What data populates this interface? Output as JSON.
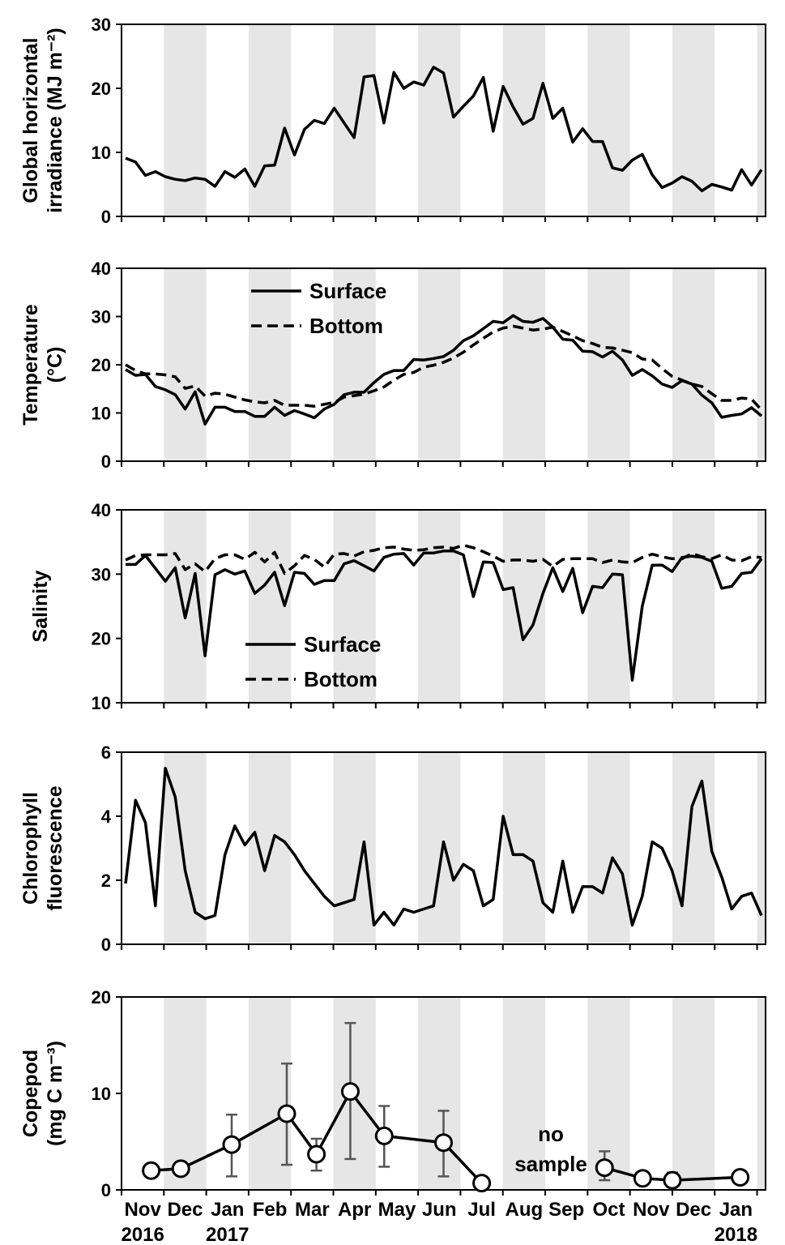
{
  "x_axis": {
    "months": [
      "Nov",
      "Dec",
      "Jan",
      "Feb",
      "Mar",
      "Apr",
      "May",
      "Jun",
      "Jul",
      "Aug",
      "Sep",
      "Oct",
      "Nov",
      "Dec",
      "Jan"
    ],
    "years": [
      {
        "month_index": 0,
        "label": "2016"
      },
      {
        "month_index": 2,
        "label": "2017"
      },
      {
        "month_index": 14,
        "label": "2018"
      }
    ]
  },
  "chart_data": [
    {
      "type": "line",
      "ylabel": [
        "Global horizontal",
        "irradiance (MJ m⁻²)"
      ],
      "ylim": [
        0,
        30
      ],
      "yticks": [
        0,
        10,
        20,
        30
      ],
      "series": [
        {
          "style": "solid",
          "values": [
            9.1,
            8.5,
            6.4,
            7.0,
            6.2,
            5.8,
            5.6,
            6.0,
            5.8,
            4.7,
            7.0,
            6.1,
            7.4,
            4.7,
            7.9,
            8.0,
            13.8,
            9.6,
            13.6,
            15.0,
            14.5,
            16.9,
            14.6,
            12.3,
            21.8,
            22.0,
            14.6,
            22.5,
            20.0,
            21.0,
            20.5,
            23.3,
            22.4,
            15.5,
            17.2,
            18.8,
            21.7,
            13.3,
            20.3,
            17.1,
            14.4,
            15.3,
            20.8,
            15.3,
            16.9,
            11.6,
            13.7,
            11.7,
            11.7,
            7.6,
            7.2,
            8.8,
            9.7,
            6.5,
            4.5,
            5.2,
            6.2,
            5.5,
            4.0,
            5.0,
            4.6,
            4.1,
            7.3,
            4.9,
            7.3
          ]
        }
      ]
    },
    {
      "type": "line",
      "ylabel": [
        "Temperature",
        "(°C)"
      ],
      "ylim": [
        0,
        40
      ],
      "yticks": [
        0,
        10,
        20,
        30,
        40
      ],
      "legend": {
        "placement": "top-left",
        "entries": [
          {
            "name": "Surface",
            "style": "solid"
          },
          {
            "name": "Bottom",
            "style": "dashed"
          }
        ]
      },
      "series": [
        {
          "name": "Surface",
          "style": "solid",
          "values": [
            19.0,
            17.8,
            18.0,
            15.5,
            14.8,
            13.8,
            10.8,
            14.4,
            7.7,
            11.2,
            11.2,
            10.3,
            10.3,
            9.3,
            9.3,
            11.2,
            9.5,
            10.5,
            9.8,
            9.0,
            10.8,
            11.8,
            13.8,
            14.3,
            14.3,
            16.3,
            18.0,
            18.8,
            18.8,
            21.1,
            21.0,
            21.3,
            21.7,
            23.0,
            25.0,
            26.0,
            27.5,
            29.0,
            28.7,
            30.2,
            29.0,
            28.8,
            29.6,
            27.8,
            25.3,
            25.1,
            22.8,
            22.7,
            21.6,
            22.8,
            21.0,
            17.8,
            19.0,
            17.7,
            16.0,
            15.3,
            16.7,
            16.0,
            13.7,
            12.1,
            9.1,
            9.5,
            9.8,
            11.1,
            9.4
          ]
        },
        {
          "name": "Bottom",
          "style": "dashed",
          "values": [
            20.0,
            18.8,
            18.1,
            18.1,
            17.9,
            17.5,
            15.1,
            15.6,
            13.5,
            14.1,
            13.9,
            13.3,
            12.7,
            12.3,
            12.1,
            12.6,
            11.6,
            11.6,
            11.6,
            11.4,
            11.8,
            12.2,
            13.3,
            13.6,
            13.9,
            14.6,
            15.4,
            16.8,
            18.0,
            18.4,
            19.5,
            19.9,
            20.5,
            21.4,
            22.6,
            24.1,
            25.5,
            26.8,
            27.6,
            28.0,
            27.6,
            27.2,
            27.4,
            27.8,
            26.9,
            26.0,
            25.0,
            24.4,
            23.6,
            23.5,
            23.0,
            22.5,
            21.2,
            21.0,
            19.2,
            17.6,
            16.8,
            16.0,
            15.5,
            14.0,
            12.6,
            12.6,
            13.1,
            12.9,
            10.6
          ]
        }
      ]
    },
    {
      "type": "line",
      "ylabel": [
        "Salinity"
      ],
      "ylim": [
        10,
        40
      ],
      "yticks": [
        10,
        20,
        30,
        40
      ],
      "legend": {
        "placement": "bottom-left",
        "entries": [
          {
            "name": "Surface",
            "style": "solid"
          },
          {
            "name": "Bottom",
            "style": "dashed"
          }
        ]
      },
      "series": [
        {
          "name": "Surface",
          "style": "solid",
          "values": [
            31.5,
            31.5,
            32.9,
            30.9,
            28.9,
            31.0,
            23.2,
            30.1,
            17.3,
            29.9,
            30.7,
            30.0,
            30.5,
            27.0,
            28.3,
            30.3,
            25.1,
            30.3,
            30.1,
            28.4,
            29.0,
            29.0,
            31.6,
            32.1,
            31.3,
            30.5,
            32.6,
            33.1,
            33.2,
            31.4,
            33.3,
            33.3,
            33.6,
            33.6,
            33.0,
            26.5,
            31.9,
            31.8,
            27.6,
            27.9,
            19.8,
            22.1,
            27.0,
            31.0,
            27.3,
            30.9,
            24.0,
            28.1,
            27.9,
            30.0,
            29.9,
            13.5,
            25.0,
            31.4,
            31.4,
            30.4,
            32.6,
            32.8,
            32.6,
            32.0,
            27.8,
            28.1,
            30.1,
            30.3,
            32.4
          ]
        },
        {
          "name": "Bottom",
          "style": "dashed",
          "values": [
            32.2,
            32.9,
            33.0,
            33.0,
            33.0,
            33.2,
            30.7,
            31.6,
            30.4,
            32.4,
            33.0,
            33.0,
            32.3,
            33.4,
            31.9,
            33.4,
            30.1,
            31.3,
            32.9,
            32.3,
            31.1,
            33.1,
            33.2,
            32.8,
            33.5,
            33.7,
            34.1,
            34.2,
            33.9,
            33.7,
            33.8,
            34.1,
            34.2,
            34.0,
            34.5,
            34.1,
            33.5,
            32.8,
            32.0,
            32.2,
            32.2,
            32.0,
            32.3,
            31.2,
            32.3,
            32.4,
            32.4,
            32.4,
            31.8,
            32.2,
            31.9,
            31.8,
            32.6,
            33.1,
            32.7,
            32.4,
            32.4,
            33.2,
            32.7,
            32.4,
            33.0,
            32.2,
            32.1,
            32.7,
            32.6
          ]
        }
      ]
    },
    {
      "type": "line",
      "ylabel": [
        "Chlorophyll",
        "fluorescence"
      ],
      "ylim": [
        0,
        6
      ],
      "yticks": [
        0,
        2,
        4,
        6
      ],
      "series": [
        {
          "style": "solid",
          "values": [
            1.9,
            4.5,
            3.8,
            1.2,
            5.5,
            4.6,
            2.3,
            1.0,
            0.8,
            0.9,
            2.8,
            3.7,
            3.1,
            3.5,
            2.3,
            3.4,
            3.2,
            2.8,
            2.3,
            1.9,
            1.5,
            1.2,
            1.3,
            1.4,
            3.2,
            0.6,
            1.0,
            0.6,
            1.1,
            1.0,
            1.1,
            1.2,
            3.2,
            2.0,
            2.5,
            2.3,
            1.2,
            1.4,
            4.0,
            2.8,
            2.8,
            2.6,
            1.3,
            1.0,
            2.6,
            1.0,
            1.8,
            1.8,
            1.6,
            2.7,
            2.2,
            0.6,
            1.5,
            3.2,
            3.0,
            2.3,
            1.2,
            4.3,
            5.1,
            2.9,
            2.1,
            1.1,
            1.5,
            1.6,
            0.9
          ]
        }
      ]
    },
    {
      "type": "scatter",
      "ylabel": [
        "Copepod",
        "(mg C m⁻³)"
      ],
      "ylim": [
        0,
        20
      ],
      "yticks": [
        0,
        10,
        20
      ],
      "annotation": [
        "no",
        "sample"
      ],
      "segments": [
        [
          {
            "x": 0.7,
            "y": 2.0
          },
          {
            "x": 1.4,
            "y": 2.2
          },
          {
            "x": 2.6,
            "y": 4.7,
            "err": [
              1.4,
              7.8
            ]
          },
          {
            "x": 3.9,
            "y": 7.9,
            "err": [
              2.6,
              13.1
            ]
          },
          {
            "x": 4.6,
            "y": 3.7,
            "err": [
              2.0,
              5.3
            ]
          },
          {
            "x": 5.4,
            "y": 10.2,
            "err": [
              3.2,
              17.3
            ]
          },
          {
            "x": 6.2,
            "y": 5.6,
            "err": [
              2.4,
              8.7
            ]
          },
          {
            "x": 7.6,
            "y": 4.9,
            "err": [
              1.4,
              8.2
            ]
          },
          {
            "x": 8.5,
            "y": 0.7
          }
        ],
        [
          {
            "x": 11.4,
            "y": 2.3,
            "err": [
              1.0,
              4.0
            ]
          },
          {
            "x": 12.3,
            "y": 1.2
          },
          {
            "x": 13.0,
            "y": 1.0,
            "err": [
              0.3,
              1.8
            ]
          },
          {
            "x": 14.6,
            "y": 1.3
          }
        ]
      ]
    }
  ]
}
